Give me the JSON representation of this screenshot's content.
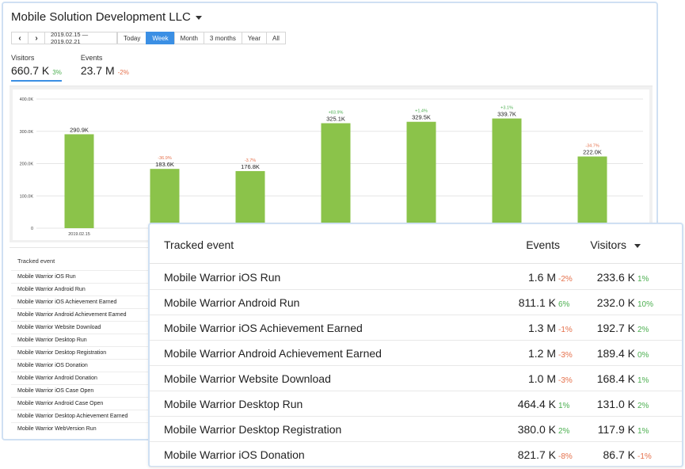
{
  "app": {
    "title": "Mobile Solution Development LLC"
  },
  "toolbar": {
    "prev": "‹",
    "next": "›",
    "date_range": "2019.02.15 — 2019.02.21",
    "periods": [
      "Today",
      "Week",
      "Month",
      "3 months",
      "Year",
      "All"
    ],
    "active_period": "Week"
  },
  "metrics": {
    "visitors": {
      "label": "Visitors",
      "value": "660.7 K",
      "change": "3%"
    },
    "events": {
      "label": "Events",
      "value": "23.7 M",
      "change": "-2%"
    }
  },
  "colors": {
    "accent": "#3b8fe4",
    "bar": "#8bc34a",
    "positive": "#4caf50",
    "negative": "#e5704b"
  },
  "chart_data": {
    "type": "bar",
    "categories": [
      "2019.02.15",
      "",
      "",
      "",
      "",
      "",
      ""
    ],
    "values": [
      290.9,
      183.6,
      176.8,
      325.1,
      329.5,
      339.7,
      222.0
    ],
    "value_labels": [
      "290.9K",
      "183.6K",
      "176.8K",
      "325.1K",
      "329.5K",
      "339.7K",
      "222.0K"
    ],
    "change_labels": [
      "",
      "-36.9%",
      "-3.7%",
      "+83.9%",
      "+1.4%",
      "+3.1%",
      "-34.7%"
    ],
    "y_ticks": [
      "0",
      "100.0K",
      "200.0K",
      "300.0K",
      "400.0K"
    ],
    "ylim": [
      0,
      400
    ],
    "grid": true
  },
  "background_table": {
    "header": "Tracked event",
    "rows": [
      "Mobile Warrior iOS Run",
      "Mobile Warrior Android Run",
      "Mobile Warrior iOS Achievement Earned",
      "Mobile Warrior Android Achievement Earned",
      "Mobile Warrior Website Download",
      "Mobile Warrior Desktop Run",
      "Mobile Warrior Desktop Registration",
      "Mobile Warrior iOS Donation",
      "Mobile Warrior Android Donation",
      "Mobile Warrior iOS Case Open",
      "Mobile Warrior Android Case Open",
      "Mobile Warrior Desktop Achievement Earned",
      "Mobile Warrior WebVersion Run"
    ]
  },
  "tracked_table": {
    "headers": {
      "event": "Tracked event",
      "events": "Events",
      "visitors": "Visitors"
    },
    "rows": [
      {
        "name": "Mobile Warrior iOS Run",
        "events": "1.6 M",
        "events_change": "-2%",
        "visitors": "233.6 K",
        "visitors_change": "1%"
      },
      {
        "name": "Mobile Warrior Android Run",
        "events": "811.1 K",
        "events_change": "6%",
        "visitors": "232.0 K",
        "visitors_change": "10%"
      },
      {
        "name": "Mobile Warrior iOS Achievement Earned",
        "events": "1.3 M",
        "events_change": "-1%",
        "visitors": "192.7 K",
        "visitors_change": "2%"
      },
      {
        "name": "Mobile Warrior Android Achievement Earned",
        "events": "1.2 M",
        "events_change": "-3%",
        "visitors": "189.4 K",
        "visitors_change": "0%"
      },
      {
        "name": "Mobile Warrior Website Download",
        "events": "1.0 M",
        "events_change": "-3%",
        "visitors": "168.4 K",
        "visitors_change": "1%"
      },
      {
        "name": "Mobile Warrior Desktop Run",
        "events": "464.4 K",
        "events_change": "1%",
        "visitors": "131.0 K",
        "visitors_change": "2%"
      },
      {
        "name": "Mobile Warrior Desktop Registration",
        "events": "380.0 K",
        "events_change": "2%",
        "visitors": "117.9 K",
        "visitors_change": "1%"
      },
      {
        "name": "Mobile Warrior iOS Donation",
        "events": "821.7 K",
        "events_change": "-8%",
        "visitors": "86.7 K",
        "visitors_change": "-1%"
      }
    ]
  }
}
